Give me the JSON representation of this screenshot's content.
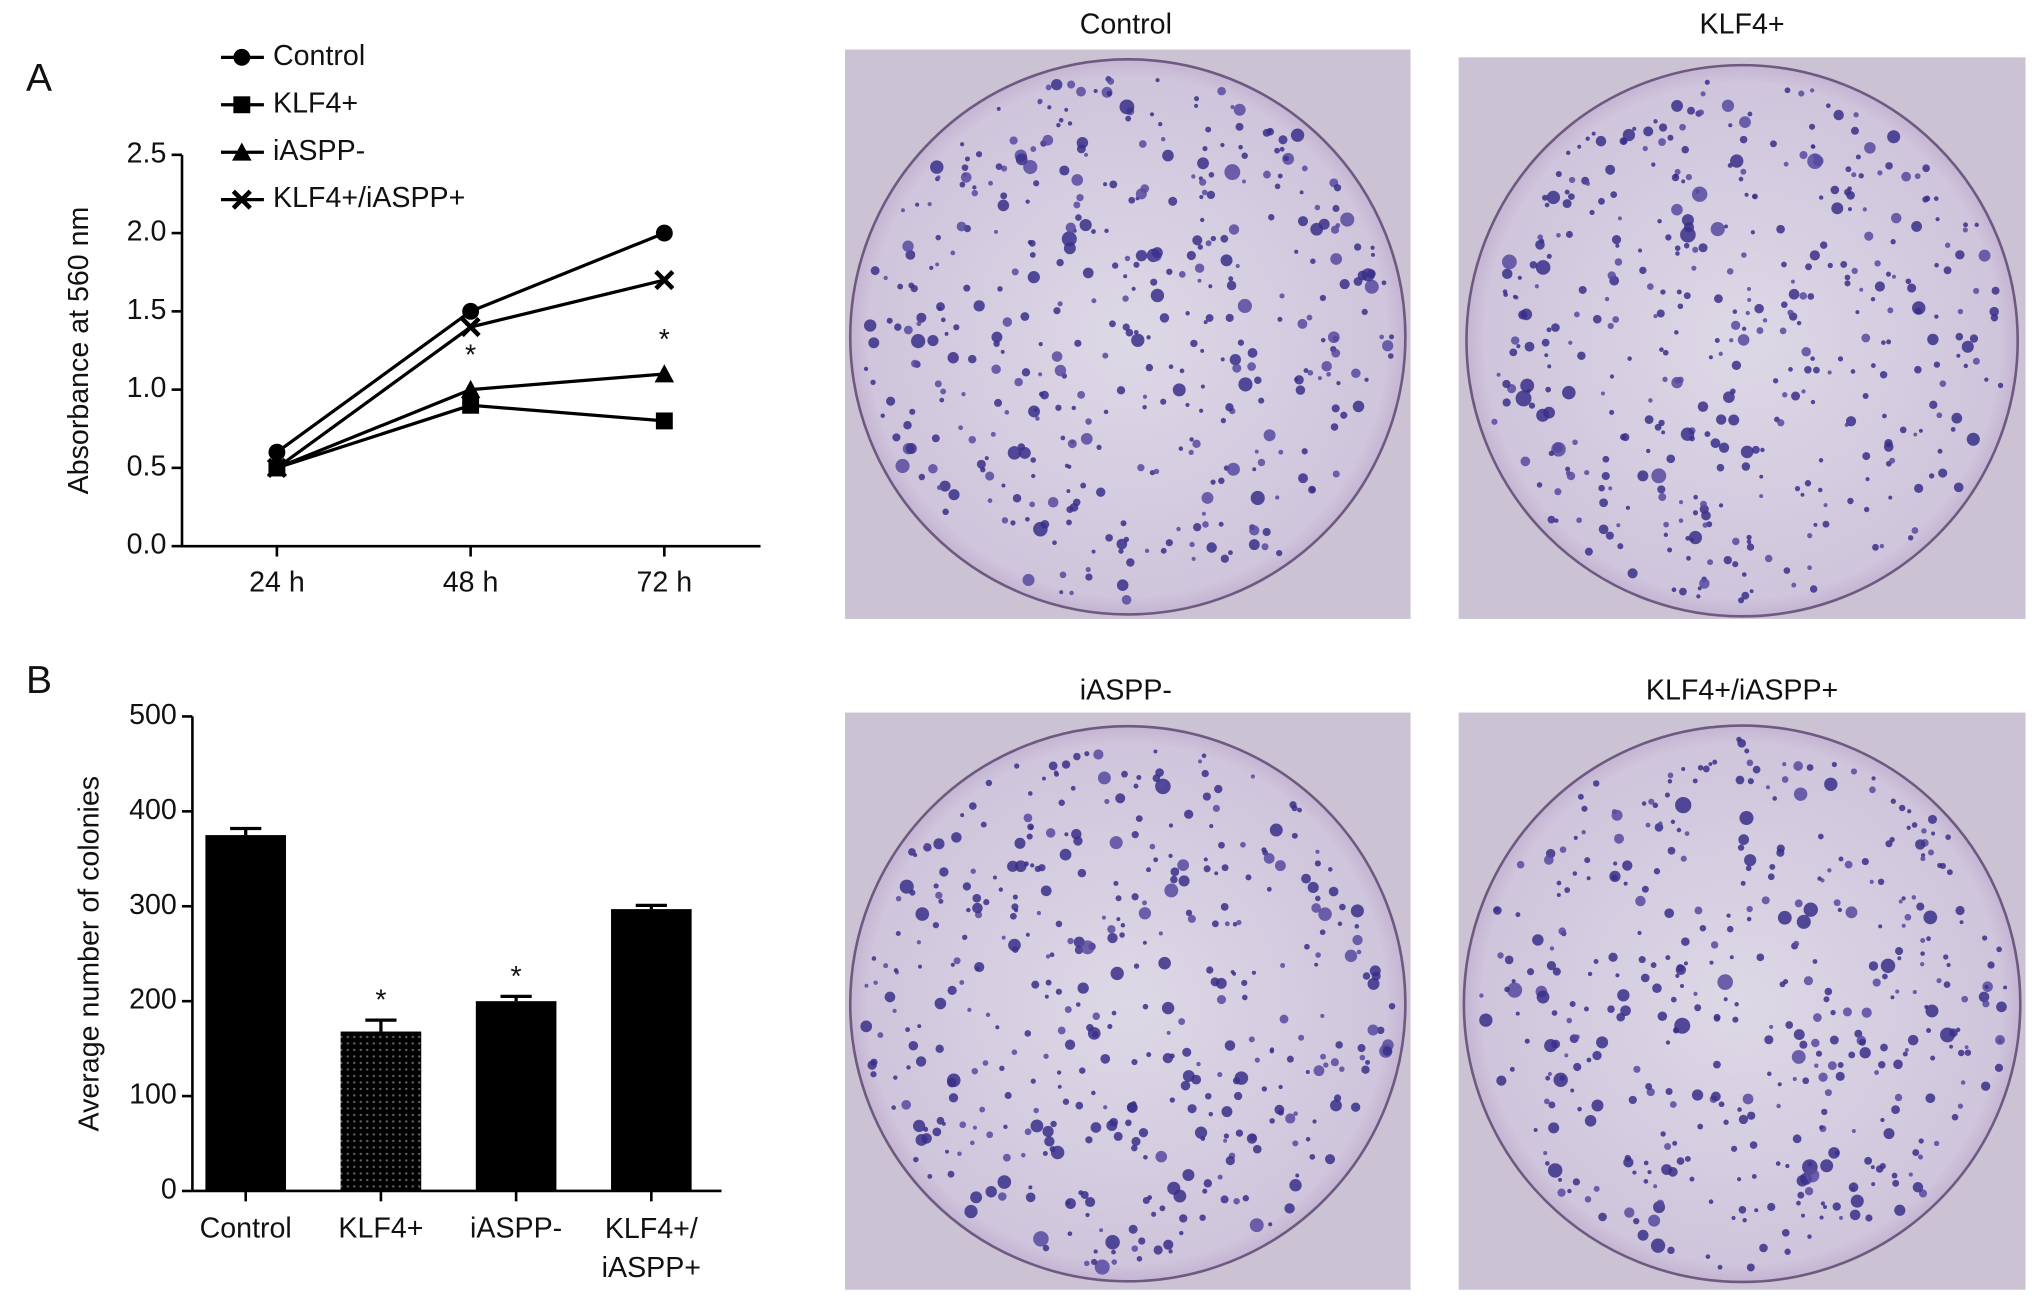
{
  "chart_data": [
    {
      "type": "line",
      "panel": "A",
      "ylabel": "Absorbance at 560 nm",
      "categories": [
        "24 h",
        "48 h",
        "72 h"
      ],
      "ylim": [
        0,
        2.5
      ],
      "yticks": [
        {
          "value": 0,
          "label": "0.0"
        },
        0.5,
        {
          "value": 1,
          "label": "1.0"
        },
        1.5,
        {
          "value": 2,
          "label": "2.0"
        },
        2.5
      ],
      "series": [
        {
          "name": "Control",
          "color": "#000000",
          "marker": "circle",
          "values": [
            0.6,
            1.5,
            2.0
          ]
        },
        {
          "name": "KLF4+",
          "color": "#000000",
          "marker": "square",
          "values": [
            0.5,
            0.9,
            0.8
          ]
        },
        {
          "name": "iASPP-",
          "color": "#000000",
          "marker": "triangle",
          "values": [
            0.5,
            1.0,
            1.1
          ],
          "annotations": [
            null,
            "*",
            "*"
          ]
        },
        {
          "name": "KLF4+/iASPP+",
          "color": "#000000",
          "marker": "x",
          "values": [
            0.5,
            1.4,
            1.7
          ]
        }
      ]
    },
    {
      "type": "bar",
      "panel": "B",
      "ylabel": "Average number of colonies",
      "categories": [
        "Control",
        "KLF4+",
        "iASPP-",
        "KLF4+/\niASPP+"
      ],
      "values": [
        375,
        168,
        200,
        297
      ],
      "errors": [
        7,
        12,
        5,
        4
      ],
      "annotations": [
        null,
        "*",
        "*",
        null
      ],
      "colors": [
        "#000000",
        "#1a1a1a",
        "#000000",
        "#000000"
      ],
      "patterns": [
        null,
        "dots",
        null,
        null
      ],
      "ylim": [
        0,
        500
      ],
      "yticks": [
        0,
        100,
        200,
        300,
        400,
        500
      ]
    }
  ],
  "images": [
    {
      "title": "Control"
    },
    {
      "title": "KLF4+"
    },
    {
      "title": "iASPP-"
    },
    {
      "title": "KLF4+/iASPP+"
    }
  ]
}
